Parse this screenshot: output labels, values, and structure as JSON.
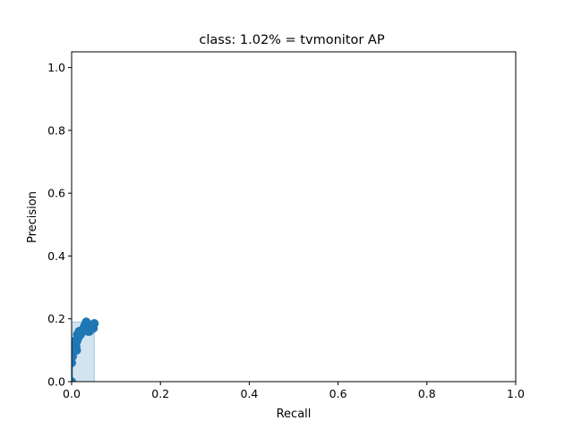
{
  "chart_data": {
    "type": "area",
    "title": "class: 1.02% = tvmonitor AP",
    "xlabel": "Recall",
    "ylabel": "Precision",
    "xlim": [
      0.0,
      1.0
    ],
    "ylim": [
      0.0,
      1.05
    ],
    "x_ticks": [
      "0.0",
      "0.2",
      "0.4",
      "0.6",
      "0.8",
      "1.0"
    ],
    "y_ticks": [
      "0.0",
      "0.2",
      "0.4",
      "0.6",
      "0.8",
      "1.0"
    ],
    "grid": false,
    "legend": "none",
    "series": [
      {
        "x": [
          0.0,
          0.0,
          0.002,
          0.004,
          0.005,
          0.007,
          0.008,
          0.009,
          0.01,
          0.011,
          0.012,
          0.013,
          0.015,
          0.017,
          0.02,
          0.024,
          0.027,
          0.03,
          0.033,
          0.035,
          0.037,
          0.04,
          0.043,
          0.046,
          0.049,
          0.051
        ],
        "y": [
          0.0,
          0.06,
          0.08,
          0.1,
          0.11,
          0.12,
          0.13,
          0.12,
          0.11,
          0.1,
          0.13,
          0.15,
          0.14,
          0.16,
          0.15,
          0.16,
          0.17,
          0.18,
          0.19,
          0.17,
          0.16,
          0.16,
          0.17,
          0.18,
          0.17,
          0.185
        ]
      }
    ],
    "fill_envelope": {
      "x": [
        0.0,
        0.0,
        0.051,
        0.051
      ],
      "y": [
        0.0,
        0.19,
        0.19,
        0.0
      ]
    },
    "colors": {
      "line": "#1f77b4",
      "fill": "#1f77b4",
      "fill_alpha": 0.2
    }
  }
}
